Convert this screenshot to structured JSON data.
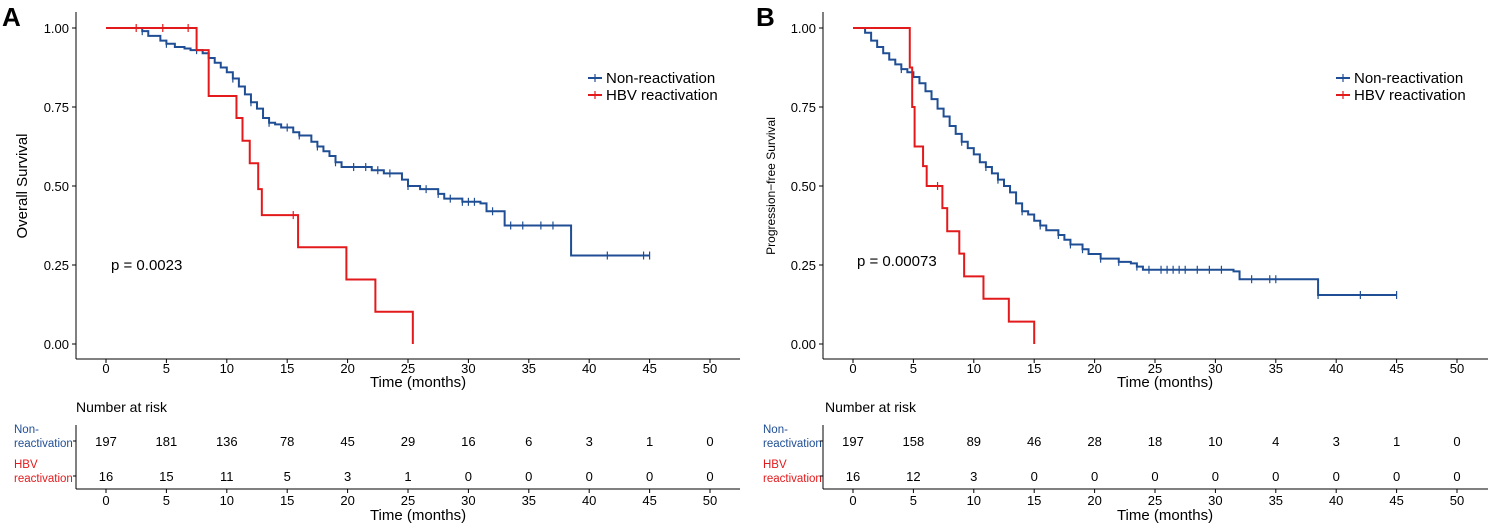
{
  "colors": {
    "non_reactivation": "#1f4e94",
    "hbv_reactivation": "#e31a1c",
    "axis": "#000000"
  },
  "chart_data": [
    {
      "type": "line",
      "panel": "A",
      "ylabel": "Overall Survival",
      "xlabel": "Time (months)",
      "xlim": [
        0,
        50
      ],
      "ylim": [
        0,
        1
      ],
      "xticks": [
        "0",
        "5",
        "10",
        "15",
        "20",
        "25",
        "30",
        "35",
        "40",
        "45",
        "50"
      ],
      "yticks": [
        "0.00",
        "0.25",
        "0.50",
        "0.75",
        "1.00"
      ],
      "p_value": "p = 0.0023",
      "legend": [
        "Non-reactivation",
        "HBV reactivation"
      ],
      "series": [
        {
          "name": "Non-reactivation",
          "points": [
            [
              0,
              1.0
            ],
            [
              2.5,
              1.0
            ],
            [
              3,
              0.99
            ],
            [
              3.5,
              0.975
            ],
            [
              4.5,
              0.96
            ],
            [
              5,
              0.95
            ],
            [
              5.7,
              0.94
            ],
            [
              6.5,
              0.935
            ],
            [
              7,
              0.93
            ],
            [
              8,
              0.92
            ],
            [
              8.5,
              0.905
            ],
            [
              9,
              0.89
            ],
            [
              9.5,
              0.875
            ],
            [
              10,
              0.86
            ],
            [
              10.5,
              0.84
            ],
            [
              11,
              0.815
            ],
            [
              11.5,
              0.79
            ],
            [
              12,
              0.765
            ],
            [
              12.5,
              0.745
            ],
            [
              13,
              0.715
            ],
            [
              13.5,
              0.7
            ],
            [
              14,
              0.695
            ],
            [
              14.5,
              0.685
            ],
            [
              15.5,
              0.67
            ],
            [
              16,
              0.66
            ],
            [
              17,
              0.64
            ],
            [
              17.5,
              0.625
            ],
            [
              18,
              0.61
            ],
            [
              18.5,
              0.595
            ],
            [
              19,
              0.575
            ],
            [
              19.5,
              0.56
            ],
            [
              22,
              0.55
            ],
            [
              23,
              0.54
            ],
            [
              24.5,
              0.52
            ],
            [
              25,
              0.5
            ],
            [
              26,
              0.49
            ],
            [
              27.5,
              0.475
            ],
            [
              28,
              0.46
            ],
            [
              29.5,
              0.45
            ],
            [
              31,
              0.445
            ],
            [
              31.5,
              0.42
            ],
            [
              33,
              0.375
            ],
            [
              38.5,
              0.28
            ],
            [
              45,
              0.28
            ]
          ],
          "censors": [
            3,
            5,
            7.5,
            8.5,
            10.5,
            12,
            13.5,
            15,
            16,
            17.5,
            19,
            20.5,
            21.5,
            22.5,
            23.5,
            25,
            26.5,
            27.5,
            28.5,
            29.5,
            30,
            30.5,
            32,
            33.5,
            34.5,
            36,
            37,
            41.5,
            44.5,
            45
          ]
        },
        {
          "name": "HBV reactivation",
          "points": [
            [
              0,
              1.0
            ],
            [
              7.5,
              1.0
            ],
            [
              7.5,
              0.93
            ],
            [
              8.5,
              0.93
            ],
            [
              8.5,
              0.785
            ],
            [
              10.8,
              0.785
            ],
            [
              10.8,
              0.715
            ],
            [
              11.3,
              0.715
            ],
            [
              11.3,
              0.643
            ],
            [
              11.9,
              0.643
            ],
            [
              11.9,
              0.572
            ],
            [
              12.6,
              0.572
            ],
            [
              12.6,
              0.49
            ],
            [
              12.9,
              0.49
            ],
            [
              12.9,
              0.408
            ],
            [
              15.9,
              0.408
            ],
            [
              15.9,
              0.306
            ],
            [
              19.9,
              0.306
            ],
            [
              19.9,
              0.204
            ],
            [
              22.3,
              0.204
            ],
            [
              22.3,
              0.102
            ],
            [
              25.4,
              0.102
            ],
            [
              25.4,
              0.0
            ]
          ],
          "censors": [
            2.5,
            4.7,
            6.8,
            15.5
          ]
        }
      ],
      "risk_table": {
        "title": "Number at risk",
        "groups": [
          {
            "label_line1": "Non-",
            "label_line2": "reactivation",
            "counts": [
              "197",
              "181",
              "136",
              "78",
              "45",
              "29",
              "16",
              "6",
              "3",
              "1",
              "0"
            ]
          },
          {
            "label_line1": "HBV",
            "label_line2": "reactivation",
            "counts": [
              "16",
              "15",
              "11",
              "5",
              "3",
              "1",
              "0",
              "0",
              "0",
              "0",
              "0"
            ]
          }
        ],
        "xlabel": "Time (months)"
      }
    },
    {
      "type": "line",
      "panel": "B",
      "ylabel": "Progression−free Survival",
      "xlabel": "Time (months)",
      "xlim": [
        0,
        50
      ],
      "ylim": [
        0,
        1
      ],
      "xticks": [
        "0",
        "5",
        "10",
        "15",
        "20",
        "25",
        "30",
        "35",
        "40",
        "45",
        "50"
      ],
      "yticks": [
        "0.00",
        "0.25",
        "0.50",
        "0.75",
        "1.00"
      ],
      "p_value": "p = 0.00073",
      "legend": [
        "Non-reactivation",
        "HBV reactivation"
      ],
      "series": [
        {
          "name": "Non-reactivation",
          "points": [
            [
              0,
              1.0
            ],
            [
              0.5,
              1.0
            ],
            [
              1,
              0.985
            ],
            [
              1.5,
              0.96
            ],
            [
              2,
              0.94
            ],
            [
              2.5,
              0.92
            ],
            [
              3,
              0.9
            ],
            [
              3.5,
              0.885
            ],
            [
              4,
              0.87
            ],
            [
              4.5,
              0.86
            ],
            [
              5,
              0.845
            ],
            [
              5.5,
              0.825
            ],
            [
              6,
              0.8
            ],
            [
              6.5,
              0.775
            ],
            [
              7,
              0.745
            ],
            [
              7.5,
              0.72
            ],
            [
              8,
              0.69
            ],
            [
              8.5,
              0.665
            ],
            [
              9,
              0.64
            ],
            [
              9.5,
              0.62
            ],
            [
              10,
              0.6
            ],
            [
              10.5,
              0.575
            ],
            [
              11,
              0.56
            ],
            [
              11.5,
              0.54
            ],
            [
              12,
              0.52
            ],
            [
              12.5,
              0.5
            ],
            [
              13,
              0.48
            ],
            [
              13.5,
              0.445
            ],
            [
              14,
              0.42
            ],
            [
              14.5,
              0.41
            ],
            [
              15,
              0.39
            ],
            [
              15.5,
              0.375
            ],
            [
              16,
              0.36
            ],
            [
              17,
              0.345
            ],
            [
              17.5,
              0.33
            ],
            [
              18,
              0.315
            ],
            [
              19,
              0.3
            ],
            [
              19.5,
              0.285
            ],
            [
              20.5,
              0.27
            ],
            [
              22,
              0.26
            ],
            [
              23,
              0.255
            ],
            [
              23.5,
              0.245
            ],
            [
              24,
              0.235
            ],
            [
              31.5,
              0.23
            ],
            [
              32,
              0.205
            ],
            [
              38.5,
              0.205
            ],
            [
              38.5,
              0.155
            ],
            [
              45,
              0.155
            ]
          ],
          "censors": [
            4,
            9,
            11,
            12,
            14,
            15.5,
            17,
            18,
            19,
            20.5,
            22,
            23.5,
            24.5,
            25.5,
            26,
            26.5,
            27,
            27.5,
            28.5,
            29.5,
            30.5,
            33,
            34.5,
            35,
            38.5,
            42,
            45
          ]
        },
        {
          "name": "HBV reactivation",
          "points": [
            [
              0,
              1.0
            ],
            [
              4.7,
              1.0
            ],
            [
              4.7,
              0.875
            ],
            [
              4.9,
              0.875
            ],
            [
              4.9,
              0.75
            ],
            [
              5.1,
              0.75
            ],
            [
              5.1,
              0.625
            ],
            [
              5.8,
              0.625
            ],
            [
              5.8,
              0.563
            ],
            [
              6.1,
              0.563
            ],
            [
              6.1,
              0.5
            ],
            [
              7.4,
              0.5
            ],
            [
              7.4,
              0.43
            ],
            [
              7.8,
              0.43
            ],
            [
              7.8,
              0.357
            ],
            [
              8.8,
              0.357
            ],
            [
              8.8,
              0.286
            ],
            [
              9.2,
              0.286
            ],
            [
              9.2,
              0.214
            ],
            [
              10.8,
              0.214
            ],
            [
              10.8,
              0.143
            ],
            [
              12.9,
              0.143
            ],
            [
              12.9,
              0.071
            ],
            [
              15,
              0.071
            ],
            [
              15,
              0.0
            ]
          ],
          "censors": [
            7
          ]
        }
      ],
      "risk_table": {
        "title": "Number at risk",
        "groups": [
          {
            "label_line1": "Non-",
            "label_line2": "reactivation",
            "counts": [
              "197",
              "158",
              "89",
              "46",
              "28",
              "18",
              "10",
              "4",
              "3",
              "1",
              "0"
            ]
          },
          {
            "label_line1": "HBV",
            "label_line2": "reactivation",
            "counts": [
              "16",
              "12",
              "3",
              "0",
              "0",
              "0",
              "0",
              "0",
              "0",
              "0",
              "0"
            ]
          }
        ],
        "xlabel": "Time (months)"
      }
    }
  ]
}
